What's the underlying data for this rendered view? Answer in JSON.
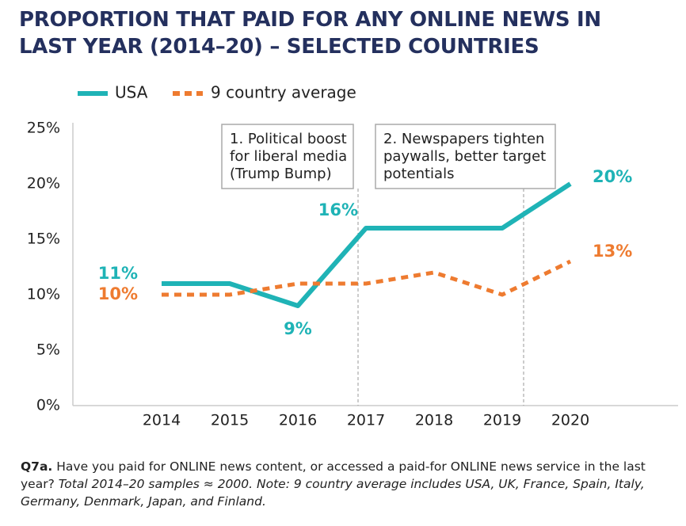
{
  "chart_data": {
    "type": "line",
    "title": "PROPORTION THAT PAID FOR ANY ONLINE NEWS IN LAST YEAR (2014–20) – SELECTED COUNTRIES",
    "categories": [
      "2014",
      "2015",
      "2016",
      "2017",
      "2018",
      "2019",
      "2020"
    ],
    "series": [
      {
        "name": "USA",
        "color": "#1fb3b6",
        "dash": false,
        "values": [
          11,
          11,
          9,
          16,
          16,
          16,
          20
        ],
        "value_labels": [
          "11%",
          null,
          "9%",
          "16%",
          null,
          null,
          "20%"
        ]
      },
      {
        "name": "9 country average",
        "color": "#ee7b30",
        "dash": true,
        "values": [
          10,
          10,
          11,
          11,
          12,
          10,
          13
        ],
        "value_labels": [
          "10%",
          null,
          null,
          null,
          null,
          null,
          "13%"
        ]
      }
    ],
    "ylim": [
      0,
      25
    ],
    "yticks": [
      {
        "value": 0,
        "label": "0%"
      },
      {
        "value": 5,
        "label": "5%"
      },
      {
        "value": 10,
        "label": "10%"
      },
      {
        "value": 15,
        "label": "15%"
      },
      {
        "value": 20,
        "label": "20%"
      },
      {
        "value": 25,
        "label": "25%"
      }
    ],
    "annotations": [
      {
        "lines": [
          "1. Political boost",
          "for liberal media",
          "(Trump Bump)"
        ]
      },
      {
        "lines": [
          "2. Newspapers tighten",
          "paywalls, better target",
          "potentials"
        ]
      }
    ],
    "note_label": "Q7a.",
    "note_text": " Have you paid for ONLINE news content, or accessed a paid-for ONLINE news service in the last year? ",
    "note_italic": "Total 2014–20 samples ≈ 2000.  Note: 9 country average includes USA, UK, France, Spain, Italy, Germany, Denmark, Japan, and Finland."
  }
}
